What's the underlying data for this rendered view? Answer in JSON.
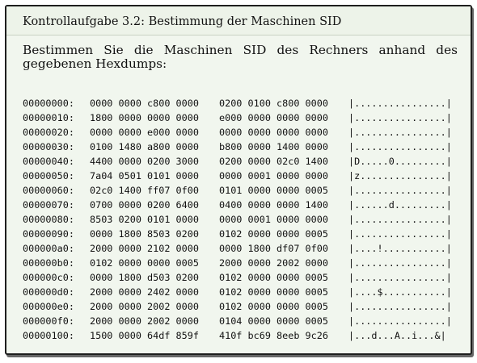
{
  "box": {
    "title": "Kontrollaufgabe 3.2: Bestimmung der Maschinen SID",
    "intro": "Bestimmen Sie die Maschinen SID des Rechners anhand des gegebenen Hexdumps:"
  },
  "hexdump": {
    "rows": [
      {
        "offset": "00000000:",
        "hex1": "0000 0000 c800 0000",
        "hex2": "0200 0100 c800 0000",
        "ascii": "|................|"
      },
      {
        "offset": "00000010:",
        "hex1": "1800 0000 0000 0000",
        "hex2": "e000 0000 0000 0000",
        "ascii": "|................|"
      },
      {
        "offset": "00000020:",
        "hex1": "0000 0000 e000 0000",
        "hex2": "0000 0000 0000 0000",
        "ascii": "|................|"
      },
      {
        "offset": "00000030:",
        "hex1": "0100 1480 a800 0000",
        "hex2": "b800 0000 1400 0000",
        "ascii": "|................|"
      },
      {
        "offset": "00000040:",
        "hex1": "4400 0000 0200 3000",
        "hex2": "0200 0000 02c0 1400",
        "ascii": "|D.....0.........|"
      },
      {
        "offset": "00000050:",
        "hex1": "7a04 0501 0101 0000",
        "hex2": "0000 0001 0000 0000",
        "ascii": "|z...............|"
      },
      {
        "offset": "00000060:",
        "hex1": "02c0 1400 ff07 0f00",
        "hex2": "0101 0000 0000 0005",
        "ascii": "|................|"
      },
      {
        "offset": "00000070:",
        "hex1": "0700 0000 0200 6400",
        "hex2": "0400 0000 0000 1400",
        "ascii": "|......d.........|"
      },
      {
        "offset": "00000080:",
        "hex1": "8503 0200 0101 0000",
        "hex2": "0000 0001 0000 0000",
        "ascii": "|................|"
      },
      {
        "offset": "00000090:",
        "hex1": "0000 1800 8503 0200",
        "hex2": "0102 0000 0000 0005",
        "ascii": "|................|"
      },
      {
        "offset": "000000a0:",
        "hex1": "2000 0000 2102 0000",
        "hex2": "0000 1800 df07 0f00",
        "ascii": "|....!...........|"
      },
      {
        "offset": "000000b0:",
        "hex1": "0102 0000 0000 0005",
        "hex2": "2000 0000 2002 0000",
        "ascii": "|................|"
      },
      {
        "offset": "000000c0:",
        "hex1": "0000 1800 d503 0200",
        "hex2": "0102 0000 0000 0005",
        "ascii": "|................|"
      },
      {
        "offset": "000000d0:",
        "hex1": "2000 0000 2402 0000",
        "hex2": "0102 0000 0000 0005",
        "ascii": "|....$...........|"
      },
      {
        "offset": "000000e0:",
        "hex1": "2000 0000 2002 0000",
        "hex2": "0102 0000 0000 0005",
        "ascii": "|................|"
      },
      {
        "offset": "000000f0:",
        "hex1": "2000 0000 2002 0000",
        "hex2": "0104 0000 0000 0005",
        "ascii": "|................|"
      },
      {
        "offset": "00000100:",
        "hex1": "1500 0000 64df 859f",
        "hex2": "410f bc69 8eeb 9c26",
        "ascii": "|...d...A..i...&|"
      }
    ]
  }
}
